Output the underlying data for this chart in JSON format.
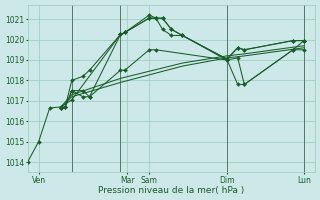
{
  "xlabel": "Pression niveau de la mer( hPa )",
  "bg_color": "#cce8e8",
  "grid_color": "#99ccbb",
  "line_color": "#1a5c2a",
  "ylim": [
    1013.5,
    1021.7
  ],
  "xlim": [
    0,
    13.0
  ],
  "yticks": [
    1014,
    1015,
    1016,
    1017,
    1018,
    1019,
    1020,
    1021
  ],
  "xtick_positions": [
    0.5,
    4.5,
    5.5,
    9.0,
    12.5
  ],
  "xtick_labels": [
    "Ven",
    "Mar",
    "Sam",
    "Dim",
    "Lun"
  ],
  "vline_positions": [
    2.0,
    4.2,
    5.5,
    9.0,
    12.5
  ],
  "series": {
    "s1": {
      "x": [
        0,
        0.5,
        1.0,
        1.5,
        2.0,
        4.2,
        4.4,
        5.5,
        5.8,
        6.1,
        6.5,
        7.0,
        9.0,
        9.5,
        9.8,
        12.0,
        12.5
      ],
      "y": [
        1014.0,
        1015.0,
        1016.65,
        1016.7,
        1017.05,
        1020.25,
        1020.35,
        1021.05,
        1021.05,
        1021.05,
        1020.5,
        1020.2,
        1019.05,
        1019.6,
        1019.5,
        1019.95,
        1019.95
      ],
      "marker": true
    },
    "s2": {
      "x": [
        1.5,
        1.7,
        2.0,
        2.5,
        2.8,
        4.2,
        4.4,
        5.5,
        5.8,
        6.1,
        6.5,
        7.0,
        9.0,
        9.5,
        9.8,
        12.0,
        12.5
      ],
      "y": [
        1016.65,
        1016.7,
        1018.0,
        1018.2,
        1018.5,
        1020.25,
        1020.35,
        1021.2,
        1021.05,
        1020.5,
        1020.2,
        1020.2,
        1019.05,
        1017.8,
        1017.8,
        1019.5,
        1019.95
      ],
      "marker": true
    },
    "s3": {
      "x": [
        1.5,
        1.7,
        2.0,
        2.5,
        2.8,
        4.2,
        4.4,
        5.5,
        5.8,
        6.1,
        6.5,
        7.0,
        9.0,
        9.5,
        9.8,
        12.0,
        12.5
      ],
      "y": [
        1016.65,
        1016.7,
        1017.5,
        1017.5,
        1017.2,
        1020.25,
        1020.35,
        1021.05,
        1021.05,
        1021.05,
        1020.5,
        1020.2,
        1019.0,
        1019.6,
        1019.5,
        1019.95,
        1019.95
      ],
      "marker": true
    },
    "s4": {
      "x": [
        1.5,
        2.0,
        4.2,
        7.0,
        9.0,
        9.8,
        12.5
      ],
      "y": [
        1016.65,
        1017.2,
        1017.9,
        1018.7,
        1019.1,
        1019.2,
        1019.6
      ],
      "marker": false
    },
    "s5": {
      "x": [
        1.5,
        2.0,
        4.2,
        7.0,
        9.0,
        9.8,
        12.5
      ],
      "y": [
        1016.7,
        1017.3,
        1018.1,
        1018.85,
        1019.2,
        1019.3,
        1019.7
      ],
      "marker": false
    },
    "s6": {
      "x": [
        1.5,
        1.7,
        2.0,
        2.5,
        2.8,
        4.2,
        4.4,
        5.5,
        5.8,
        9.0,
        9.5,
        9.8,
        12.0,
        12.5
      ],
      "y": [
        1016.65,
        1016.7,
        1017.5,
        1017.2,
        1017.2,
        1018.5,
        1018.5,
        1019.5,
        1019.5,
        1019.0,
        1019.1,
        1017.8,
        1019.5,
        1019.5
      ],
      "marker": true
    }
  }
}
